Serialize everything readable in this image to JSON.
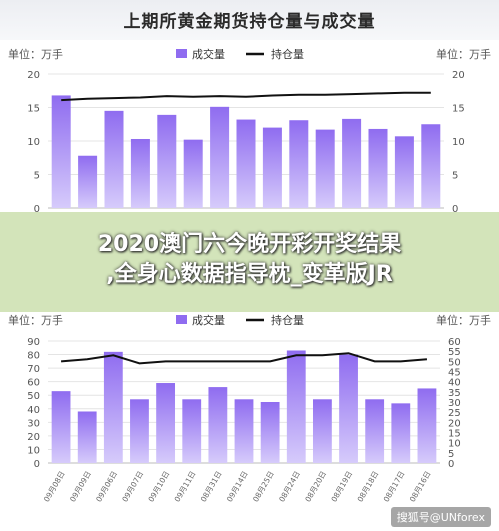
{
  "header": {
    "title": "上期所黄金期货持仓量与成交量"
  },
  "overlay": {
    "line1": "2020澳门六今晚开彩开奖结果",
    "line2": ",全身心数据指导枕_变革版JR"
  },
  "watermark": "搜狐号@UNforex",
  "colors": {
    "bar_top": "#8f6cf0",
    "bar_bottom": "#d6cbfb",
    "line": "#111111"
  },
  "chart_data": [
    {
      "type": "bar",
      "unit_left": "单位：万手",
      "unit_right": "单位：万手",
      "series": [
        {
          "name": "成交量",
          "type": "bar",
          "values": [
            16.8,
            7.8,
            14.5,
            10.3,
            13.9,
            10.2,
            15.1,
            13.2,
            12.0,
            13.1,
            11.7,
            13.3,
            11.8,
            10.7,
            12.5
          ]
        },
        {
          "name": "持仓量",
          "type": "line",
          "values": [
            16.1,
            16.3,
            16.4,
            16.5,
            16.7,
            16.6,
            16.7,
            16.6,
            16.8,
            16.9,
            16.9,
            17.0,
            17.1,
            17.2,
            17.2
          ]
        }
      ],
      "ylim_left": [
        0,
        20
      ],
      "ylim_right": [
        0,
        20
      ],
      "yticks_left": [
        0,
        5,
        10,
        15,
        20
      ],
      "yticks_right": [
        0,
        5,
        10,
        15,
        20
      ],
      "legend_position": "top-center",
      "grid": true
    },
    {
      "type": "bar",
      "unit_left": "单位：万手",
      "unit_right": "单位：万手",
      "categories": [
        "09月08日",
        "09月09日",
        "09月06日",
        "09月07日",
        "09月10日",
        "09月11日",
        "08月31日",
        "09月14日",
        "08月25日",
        "08月24日",
        "08月20日",
        "08月19日",
        "08月18日",
        "08月17日",
        "08月16日"
      ],
      "series": [
        {
          "name": "成交量",
          "type": "bar",
          "axis": "left",
          "values": [
            53,
            38,
            82,
            47,
            59,
            47,
            56,
            47,
            45,
            83,
            47,
            80,
            47,
            44,
            55
          ]
        },
        {
          "name": "持仓量",
          "type": "line",
          "axis": "right",
          "values": [
            50,
            51,
            53,
            49,
            50,
            50,
            50,
            50,
            50,
            53,
            53,
            54,
            50,
            50,
            51
          ]
        }
      ],
      "ylim_left": [
        0,
        90
      ],
      "ylim_right": [
        0,
        60
      ],
      "yticks_left": [
        0,
        10,
        20,
        30,
        40,
        50,
        60,
        70,
        80,
        90
      ],
      "yticks_right": [
        0,
        5,
        10,
        15,
        20,
        25,
        30,
        35,
        40,
        45,
        50,
        55,
        60
      ],
      "legend_position": "top-center",
      "grid": true
    }
  ]
}
